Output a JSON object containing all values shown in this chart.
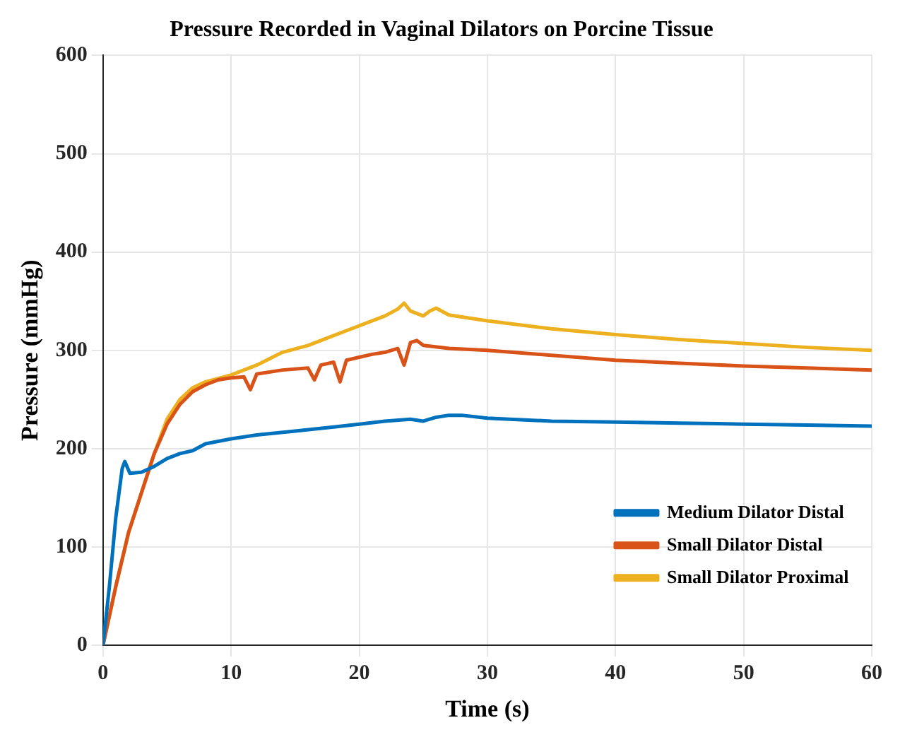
{
  "chart_data": {
    "type": "line",
    "title": "Pressure Recorded in Vaginal Dilators on Porcine Tissue",
    "xlabel": "Time (s)",
    "ylabel": "Pressure (mmHg)",
    "xlim": [
      0,
      60
    ],
    "xticks": [
      0,
      10,
      20,
      30,
      40,
      50,
      60
    ],
    "ylim": [
      0,
      600
    ],
    "yticks": [
      0,
      100,
      200,
      300,
      400,
      500,
      600
    ],
    "grid": true,
    "legend": "bottom right",
    "marker": "none",
    "line_style": "solid",
    "series": [
      {
        "name": "Medium Dilator Distal",
        "color": "#0072bd",
        "x": [
          0,
          0.5,
          1,
          1.5,
          1.7,
          2.1,
          3,
          4,
          5,
          6,
          7,
          8,
          10,
          12,
          15,
          18,
          20,
          22,
          24,
          25,
          26,
          27,
          28,
          30,
          35,
          40,
          45,
          50,
          55,
          60
        ],
        "values": [
          0,
          60,
          130,
          180,
          187,
          175,
          176,
          182,
          190,
          195,
          198,
          205,
          210,
          214,
          218,
          222,
          225,
          228,
          230,
          228,
          232,
          234,
          234,
          231,
          228,
          227,
          226,
          225,
          224,
          223
        ]
      },
      {
        "name": "Small Dilator Distal",
        "color": "#d95319",
        "x": [
          0,
          1,
          2,
          3,
          4,
          5,
          6,
          7,
          8,
          9,
          10,
          11,
          11.5,
          12,
          14,
          16,
          16.5,
          17,
          18,
          18.5,
          19,
          20,
          21,
          22,
          23,
          23.5,
          24,
          24.5,
          25,
          27,
          30,
          35,
          40,
          45,
          50,
          55,
          60
        ],
        "values": [
          0,
          60,
          115,
          155,
          195,
          225,
          245,
          258,
          265,
          270,
          272,
          273,
          260,
          276,
          280,
          282,
          270,
          285,
          288,
          268,
          290,
          293,
          296,
          298,
          302,
          285,
          308,
          310,
          305,
          302,
          300,
          295,
          290,
          287,
          284,
          282,
          280
        ]
      },
      {
        "name": "Small Dilator Proximal",
        "color": "#edb120",
        "x": [
          0,
          1,
          2,
          3,
          4,
          5,
          6,
          7,
          8,
          10,
          12,
          14,
          16,
          18,
          20,
          22,
          23,
          23.5,
          24,
          25,
          25.5,
          26,
          27,
          30,
          35,
          40,
          45,
          50,
          55,
          60
        ],
        "values": [
          0,
          60,
          115,
          155,
          195,
          230,
          250,
          262,
          268,
          275,
          285,
          298,
          305,
          315,
          325,
          335,
          342,
          348,
          340,
          335,
          340,
          343,
          336,
          330,
          322,
          316,
          311,
          307,
          303,
          300
        ]
      }
    ]
  }
}
